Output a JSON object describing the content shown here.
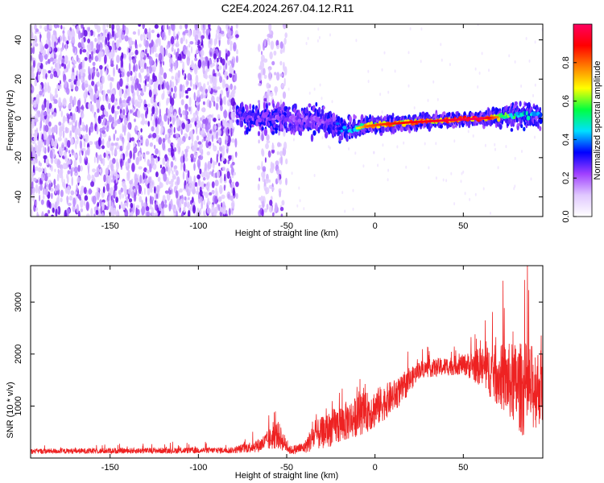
{
  "page": {
    "title": "C2E4.2024.267.04.12.R11"
  },
  "chart_data": [
    {
      "type": "heatmap",
      "title": "C2E4.2024.267.04.12.R11",
      "xlabel": "Height of straight line (km)",
      "ylabel": "Frequency (Hz)",
      "xlim": [
        -195,
        95
      ],
      "ylim": [
        -50,
        48
      ],
      "x_ticks": [
        -150,
        -100,
        -50,
        0,
        50
      ],
      "y_ticks": [
        -40,
        -20,
        0,
        20,
        40
      ],
      "colorbar": {
        "label": "Normalized spectral amplitude",
        "range": [
          0,
          1
        ],
        "ticks": [
          0.0,
          0.2,
          0.4,
          0.6,
          0.8
        ],
        "colors": [
          "#ffffff",
          "#e0c8ff",
          "#a040ff",
          "#0000ff",
          "#00e0ff",
          "#00ff40",
          "#ffff00",
          "#ff8000",
          "#ff0000",
          "#ff0060"
        ]
      },
      "signal_track": [
        {
          "x": -75,
          "y": 1,
          "amp": 0.3
        },
        {
          "x": -55,
          "y": 0,
          "amp": 0.25
        },
        {
          "x": -30,
          "y": -1,
          "amp": 0.25
        },
        {
          "x": -15,
          "y": -6,
          "amp": 0.45
        },
        {
          "x": -5,
          "y": -4,
          "amp": 0.75
        },
        {
          "x": 5,
          "y": -3,
          "amp": 0.8
        },
        {
          "x": 20,
          "y": -2,
          "amp": 0.85
        },
        {
          "x": 40,
          "y": -1,
          "amp": 0.9
        },
        {
          "x": 60,
          "y": 0,
          "amp": 0.95
        },
        {
          "x": 75,
          "y": 1,
          "amp": 0.6
        },
        {
          "x": 90,
          "y": 2,
          "amp": 0.45
        }
      ],
      "noise_regions": [
        {
          "x_from": -195,
          "x_to": -78,
          "density": "high"
        },
        {
          "x_from": -66,
          "x_to": -50,
          "density": "medium"
        }
      ]
    },
    {
      "type": "line",
      "xlabel": "Height of straight line (km)",
      "ylabel": "SNR (10 * v/v)",
      "xlim": [
        -195,
        95
      ],
      "ylim": [
        0,
        3700
      ],
      "x_ticks": [
        -150,
        -100,
        -50,
        0,
        50
      ],
      "y_ticks": [
        1000,
        2000,
        3000
      ],
      "color": "#ee2222",
      "envelope": [
        {
          "x": -195,
          "base": 130,
          "spread": 90
        },
        {
          "x": -80,
          "base": 150,
          "spread": 110
        },
        {
          "x": -65,
          "base": 250,
          "spread": 250
        },
        {
          "x": -55,
          "base": 450,
          "spread": 500
        },
        {
          "x": -48,
          "base": 150,
          "spread": 150
        },
        {
          "x": -40,
          "base": 200,
          "spread": 200
        },
        {
          "x": -35,
          "base": 400,
          "spread": 500
        },
        {
          "x": -20,
          "base": 650,
          "spread": 700
        },
        {
          "x": 0,
          "base": 950,
          "spread": 700
        },
        {
          "x": 15,
          "base": 1300,
          "spread": 500
        },
        {
          "x": 25,
          "base": 1700,
          "spread": 300
        },
        {
          "x": 50,
          "base": 1800,
          "spread": 350
        },
        {
          "x": 60,
          "base": 1750,
          "spread": 700
        },
        {
          "x": 75,
          "base": 1500,
          "spread": 1300
        },
        {
          "x": 85,
          "base": 1300,
          "spread": 1700
        },
        {
          "x": 95,
          "base": 1400,
          "spread": 1300
        }
      ]
    }
  ]
}
